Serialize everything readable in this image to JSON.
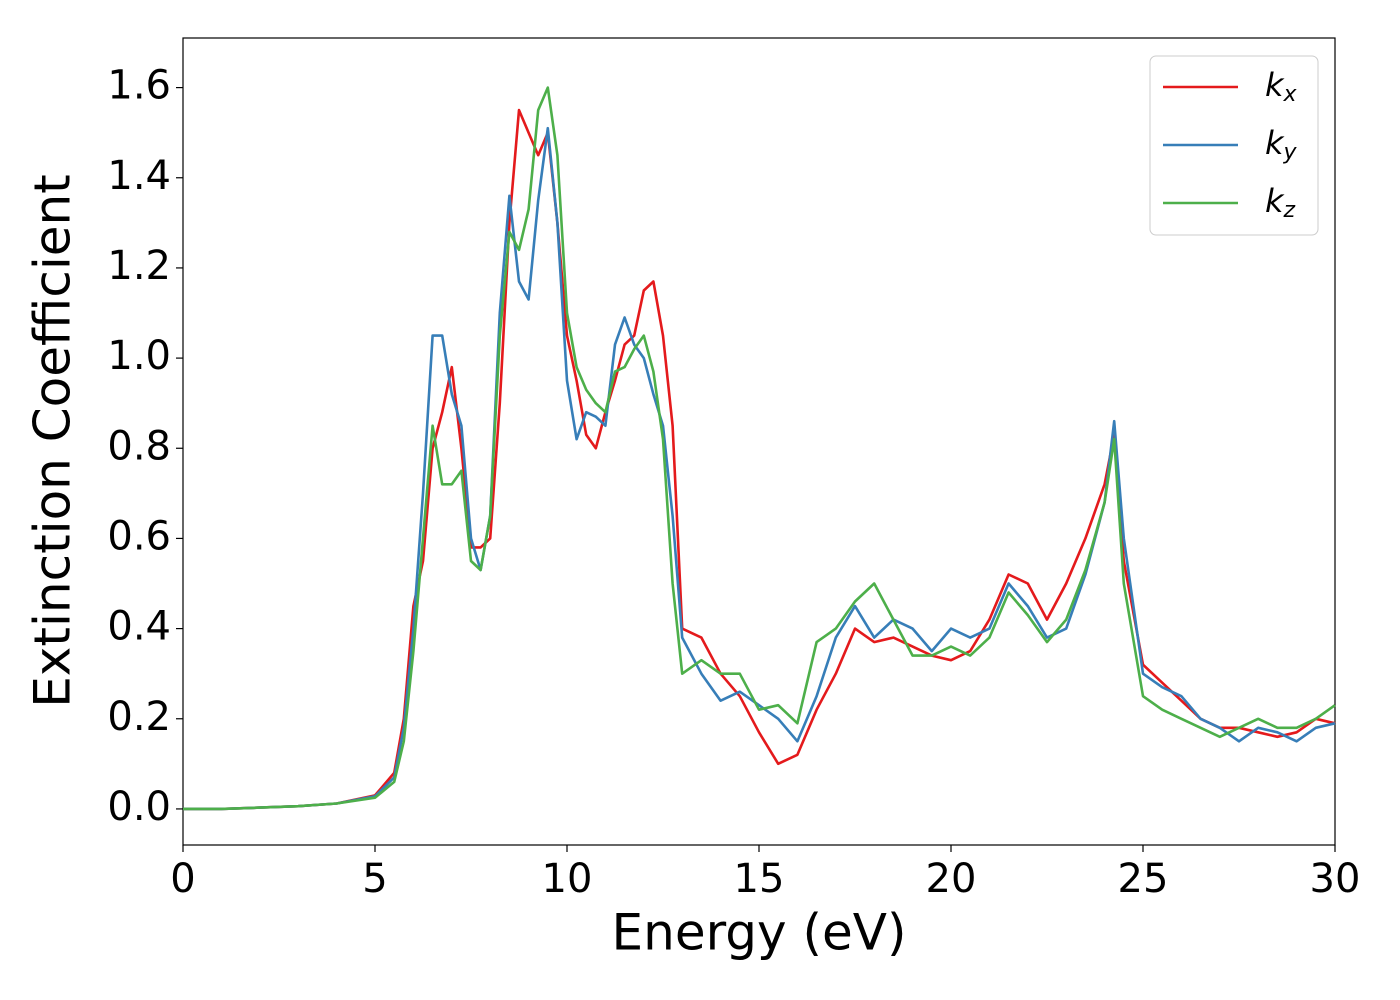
{
  "chart_data": {
    "type": "line",
    "xlabel": "Energy (eV)",
    "ylabel": "Extinction Coefficient",
    "x": [
      0,
      1,
      2,
      3,
      4,
      5,
      5.5,
      5.75,
      6,
      6.25,
      6.5,
      6.75,
      7,
      7.25,
      7.5,
      7.75,
      8,
      8.25,
      8.5,
      8.75,
      9,
      9.25,
      9.5,
      9.75,
      10,
      10.25,
      10.5,
      10.75,
      11,
      11.25,
      11.5,
      11.75,
      12,
      12.25,
      12.5,
      12.75,
      13,
      13.5,
      14,
      14.5,
      15,
      15.5,
      16,
      16.5,
      17,
      17.5,
      18,
      18.5,
      19,
      19.5,
      20,
      20.5,
      21,
      21.5,
      22,
      22.5,
      23,
      23.5,
      24,
      24.25,
      24.5,
      25,
      25.5,
      26,
      26.5,
      27,
      27.5,
      28,
      28.5,
      29,
      29.5,
      30
    ],
    "series": [
      {
        "name": "kx",
        "color": "#e41a1c",
        "values": [
          0,
          0,
          0.003,
          0.006,
          0.012,
          0.03,
          0.08,
          0.2,
          0.45,
          0.55,
          0.8,
          0.88,
          0.98,
          0.8,
          0.58,
          0.58,
          0.6,
          0.9,
          1.3,
          1.55,
          1.5,
          1.45,
          1.5,
          1.3,
          1.05,
          0.95,
          0.83,
          0.8,
          0.88,
          0.95,
          1.03,
          1.05,
          1.15,
          1.17,
          1.05,
          0.85,
          0.4,
          0.38,
          0.3,
          0.25,
          0.17,
          0.1,
          0.12,
          0.22,
          0.3,
          0.4,
          0.37,
          0.38,
          0.36,
          0.34,
          0.33,
          0.35,
          0.42,
          0.52,
          0.5,
          0.42,
          0.5,
          0.6,
          0.72,
          0.83,
          0.55,
          0.32,
          0.28,
          0.24,
          0.2,
          0.18,
          0.18,
          0.17,
          0.16,
          0.17,
          0.2,
          0.19
        ]
      },
      {
        "name": "ky",
        "color": "#377eb8",
        "values": [
          0,
          0,
          0.003,
          0.006,
          0.012,
          0.028,
          0.07,
          0.18,
          0.4,
          0.7,
          1.05,
          1.05,
          0.92,
          0.85,
          0.6,
          0.53,
          0.65,
          1.1,
          1.36,
          1.17,
          1.13,
          1.35,
          1.51,
          1.3,
          0.95,
          0.82,
          0.88,
          0.87,
          0.85,
          1.03,
          1.09,
          1.03,
          1.0,
          0.92,
          0.85,
          0.65,
          0.38,
          0.3,
          0.24,
          0.26,
          0.23,
          0.2,
          0.15,
          0.25,
          0.38,
          0.45,
          0.38,
          0.42,
          0.4,
          0.35,
          0.4,
          0.38,
          0.4,
          0.5,
          0.45,
          0.38,
          0.4,
          0.52,
          0.68,
          0.86,
          0.6,
          0.3,
          0.27,
          0.25,
          0.2,
          0.18,
          0.15,
          0.18,
          0.17,
          0.15,
          0.18,
          0.19
        ]
      },
      {
        "name": "kz",
        "color": "#4daf4a",
        "values": [
          0,
          0,
          0.003,
          0.006,
          0.012,
          0.025,
          0.06,
          0.15,
          0.35,
          0.6,
          0.85,
          0.72,
          0.72,
          0.75,
          0.55,
          0.53,
          0.65,
          1.05,
          1.28,
          1.24,
          1.33,
          1.55,
          1.6,
          1.45,
          1.1,
          0.98,
          0.93,
          0.9,
          0.88,
          0.97,
          0.98,
          1.02,
          1.05,
          0.97,
          0.82,
          0.5,
          0.3,
          0.33,
          0.3,
          0.3,
          0.22,
          0.23,
          0.19,
          0.37,
          0.4,
          0.46,
          0.5,
          0.42,
          0.34,
          0.34,
          0.36,
          0.34,
          0.38,
          0.48,
          0.43,
          0.37,
          0.42,
          0.53,
          0.68,
          0.82,
          0.5,
          0.25,
          0.22,
          0.2,
          0.18,
          0.16,
          0.18,
          0.2,
          0.18,
          0.18,
          0.2,
          0.23
        ]
      }
    ],
    "xlim": [
      0,
      30
    ],
    "xticks": [
      0,
      5,
      10,
      15,
      20,
      25,
      30
    ],
    "ylim": [
      -0.08,
      1.71
    ],
    "yticks": [
      {
        "value": 0,
        "label": "0.0"
      },
      0.2,
      0.4,
      0.6,
      0.8,
      {
        "value": 1,
        "label": "1.0"
      },
      1.2,
      1.4,
      1.6
    ],
    "legend": "upper right"
  }
}
